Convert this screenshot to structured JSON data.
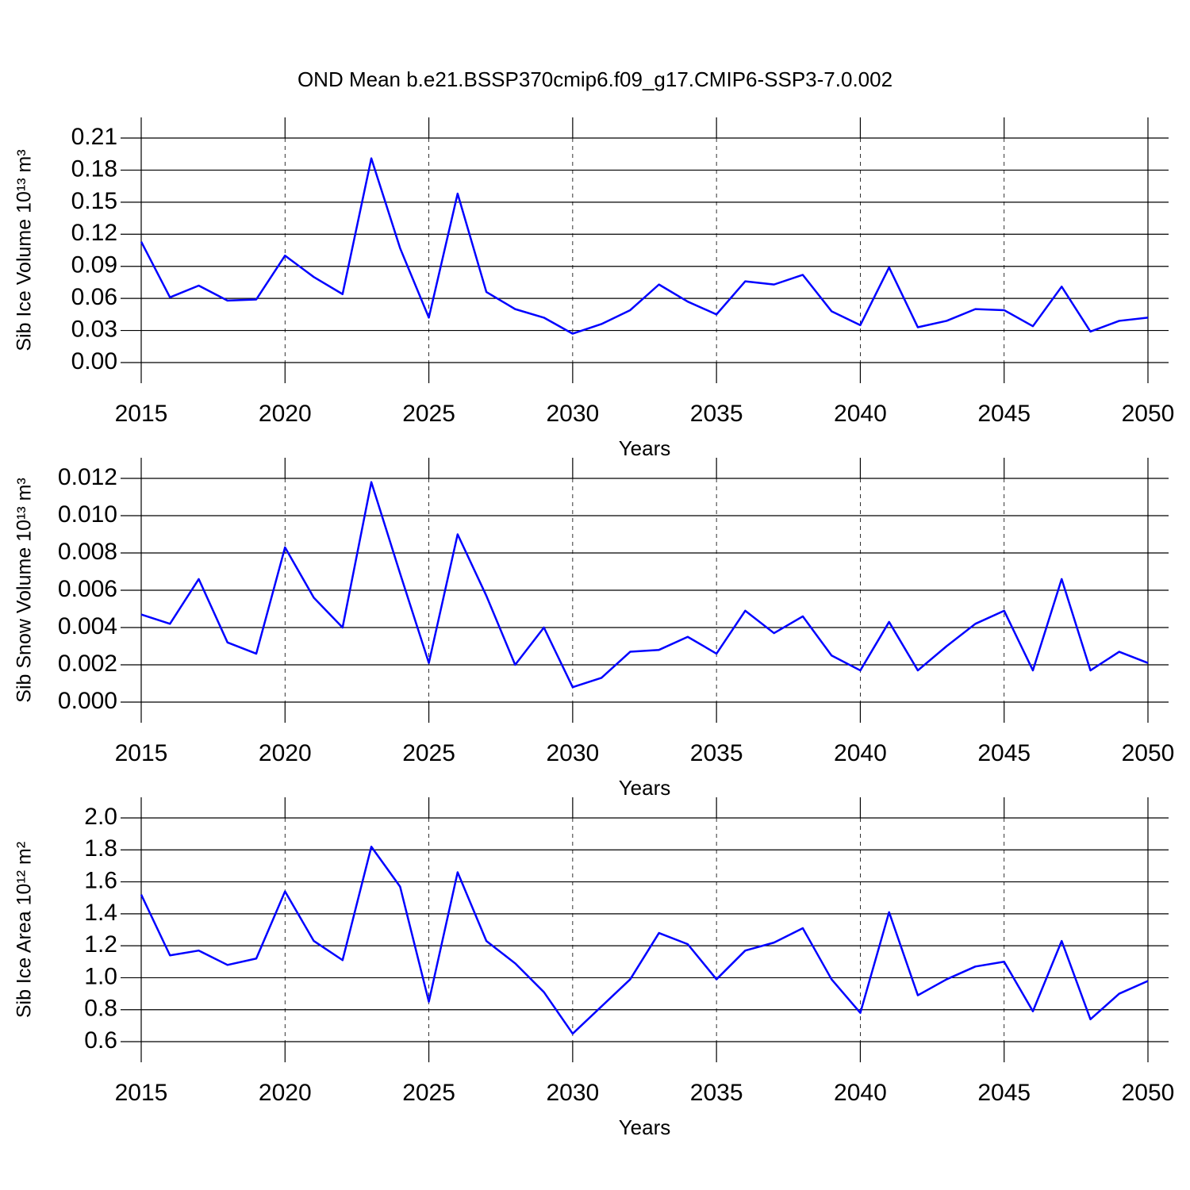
{
  "chart_data": [
    {
      "type": "line",
      "title": "OND Mean b.e21.BSSP370cmip6.f09_g17.CMIP6-SSP3-7.0.002",
      "xlabel": "Years",
      "ylabel": "Sib Ice Volume 10¹³ m³",
      "color": "#0000ff",
      "grid": true,
      "x": [
        2015,
        2016,
        2017,
        2018,
        2019,
        2020,
        2021,
        2022,
        2023,
        2024,
        2025,
        2026,
        2027,
        2028,
        2029,
        2030,
        2031,
        2032,
        2033,
        2034,
        2035,
        2036,
        2037,
        2038,
        2039,
        2040,
        2041,
        2042,
        2043,
        2044,
        2045,
        2046,
        2047,
        2048,
        2049,
        2050
      ],
      "values": [
        0.113,
        0.061,
        0.072,
        0.058,
        0.059,
        0.1,
        0.08,
        0.064,
        0.191,
        0.107,
        0.042,
        0.158,
        0.066,
        0.05,
        0.042,
        0.027,
        0.036,
        0.049,
        0.073,
        0.057,
        0.045,
        0.076,
        0.073,
        0.082,
        0.048,
        0.035,
        0.089,
        0.033,
        0.039,
        0.05,
        0.049,
        0.034,
        0.071,
        0.029,
        0.039,
        0.042
      ],
      "xlim": [
        2015,
        2050
      ],
      "xticks": [
        2015,
        2020,
        2025,
        2030,
        2035,
        2040,
        2045,
        2050
      ],
      "ylim": [
        0,
        0.21
      ],
      "yticks": [
        {
          "value": 0,
          "label": "0.00"
        },
        0.03,
        0.06,
        0.09,
        0.12,
        0.15,
        0.18,
        0.21
      ]
    },
    {
      "type": "line",
      "xlabel": "Years",
      "ylabel": "Sib Snow Volume 10¹³ m³",
      "color": "#0000ff",
      "grid": true,
      "x": [
        2015,
        2016,
        2017,
        2018,
        2019,
        2020,
        2021,
        2022,
        2023,
        2024,
        2025,
        2026,
        2027,
        2028,
        2029,
        2030,
        2031,
        2032,
        2033,
        2034,
        2035,
        2036,
        2037,
        2038,
        2039,
        2040,
        2041,
        2042,
        2043,
        2044,
        2045,
        2046,
        2047,
        2048,
        2049,
        2050
      ],
      "values": [
        0.0047,
        0.0042,
        0.0066,
        0.0032,
        0.0026,
        0.0083,
        0.0056,
        0.004,
        0.0118,
        0.0069,
        0.0021,
        0.009,
        0.0057,
        0.002,
        0.004,
        0.0008,
        0.0013,
        0.0027,
        0.0028,
        0.0035,
        0.0026,
        0.0049,
        0.0037,
        0.0046,
        0.0025,
        0.0017,
        0.0043,
        0.0017,
        0.003,
        0.0042,
        0.0049,
        0.0017,
        0.0066,
        0.0017,
        0.0027,
        0.0021
      ],
      "xlim": [
        2015,
        2050
      ],
      "xticks": [
        2015,
        2020,
        2025,
        2030,
        2035,
        2040,
        2045,
        2050
      ],
      "ylim": [
        0,
        0.012
      ],
      "yticks": [
        {
          "value": 0,
          "label": "0.000"
        },
        0.002,
        0.004,
        0.006,
        0.008,
        {
          "value": 0.01,
          "label": "0.010"
        },
        0.012
      ]
    },
    {
      "type": "line",
      "xlabel": "Years",
      "ylabel": "Sib Ice Area 10¹² m²",
      "color": "#0000ff",
      "grid": true,
      "x": [
        2015,
        2016,
        2017,
        2018,
        2019,
        2020,
        2021,
        2022,
        2023,
        2024,
        2025,
        2026,
        2027,
        2028,
        2029,
        2030,
        2031,
        2032,
        2033,
        2034,
        2035,
        2036,
        2037,
        2038,
        2039,
        2040,
        2041,
        2042,
        2043,
        2044,
        2045,
        2046,
        2047,
        2048,
        2049,
        2050
      ],
      "values": [
        1.52,
        1.14,
        1.17,
        1.08,
        1.12,
        1.54,
        1.23,
        1.11,
        1.82,
        1.57,
        0.85,
        1.66,
        1.23,
        1.09,
        0.91,
        0.65,
        0.82,
        0.99,
        1.28,
        1.21,
        0.99,
        1.17,
        1.22,
        1.31,
        0.99,
        0.78,
        1.41,
        0.89,
        0.99,
        1.07,
        1.1,
        0.79,
        1.23,
        0.74,
        0.9,
        0.98
      ],
      "xlim": [
        2015,
        2050
      ],
      "xticks": [
        2015,
        2020,
        2025,
        2030,
        2035,
        2040,
        2045,
        2050
      ],
      "ylim": [
        0.6,
        2.0
      ],
      "yticks": [
        0.6,
        0.8,
        {
          "value": 1,
          "label": "1.0"
        },
        1.2,
        1.4,
        1.6,
        1.8,
        {
          "value": 2,
          "label": "2.0"
        }
      ]
    }
  ]
}
